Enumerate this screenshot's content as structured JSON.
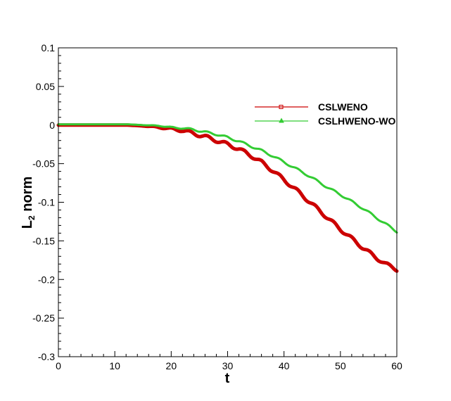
{
  "chart_data": {
    "type": "line",
    "title": "",
    "xlabel": "t",
    "ylabel_main": "L",
    "ylabel_sub": "2",
    "ylabel_rest": " norm",
    "xlim": [
      0,
      60
    ],
    "ylim": [
      -0.3,
      0.1
    ],
    "x_ticks": [
      0,
      10,
      20,
      30,
      40,
      50,
      60
    ],
    "x_tick_labels": [
      "0",
      "10",
      "20",
      "30",
      "40",
      "50",
      "60"
    ],
    "y_ticks": [
      0.1,
      0.05,
      0,
      -0.05,
      -0.1,
      -0.15,
      -0.2,
      -0.25,
      -0.3
    ],
    "y_tick_labels": [
      "0.1",
      "0.05",
      "0",
      "-0.05",
      "-0.1",
      "-0.15",
      "-0.2",
      "-0.25",
      "-0.3"
    ],
    "grid": false,
    "legend_position": "top-right",
    "series": [
      {
        "name": "CSLWENO",
        "color": "#cc0000",
        "marker": "square",
        "x": [
          0,
          5,
          10,
          12,
          15,
          18,
          20,
          22,
          24,
          26,
          28,
          30,
          32,
          34,
          36,
          38,
          40,
          42,
          44,
          46,
          48,
          50,
          52,
          54,
          56,
          58,
          60
        ],
        "y": [
          0,
          0,
          0,
          0,
          -0.001,
          -0.003,
          -0.005,
          -0.007,
          -0.011,
          -0.015,
          -0.02,
          -0.025,
          -0.031,
          -0.039,
          -0.048,
          -0.059,
          -0.071,
          -0.083,
          -0.096,
          -0.109,
          -0.122,
          -0.135,
          -0.147,
          -0.159,
          -0.17,
          -0.18,
          -0.187
        ]
      },
      {
        "name": "CSLHWENO-WO",
        "color": "#33cc33",
        "marker": "triangle",
        "x": [
          0,
          5,
          10,
          12,
          15,
          18,
          20,
          22,
          24,
          26,
          28,
          30,
          32,
          34,
          36,
          38,
          40,
          42,
          44,
          46,
          48,
          50,
          52,
          54,
          56,
          58,
          60
        ],
        "y": [
          0.001,
          0.001,
          0.001,
          0.001,
          0,
          -0.001,
          -0.003,
          -0.004,
          -0.006,
          -0.009,
          -0.012,
          -0.016,
          -0.021,
          -0.027,
          -0.033,
          -0.04,
          -0.048,
          -0.056,
          -0.064,
          -0.073,
          -0.082,
          -0.09,
          -0.099,
          -0.108,
          -0.118,
          -0.128,
          -0.138
        ]
      }
    ]
  }
}
